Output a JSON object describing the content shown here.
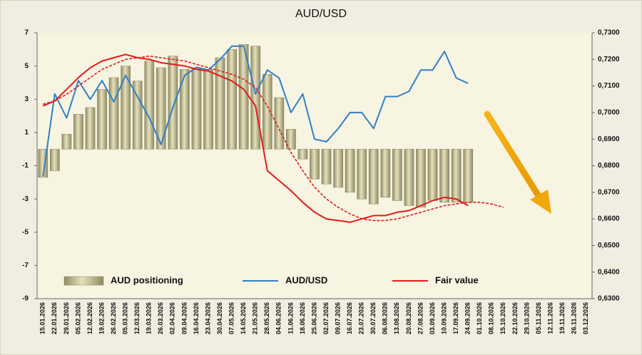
{
  "chart_data": {
    "type": "bar",
    "title": "AUD/USD",
    "categories": [
      "15.01.2026",
      "22.01.2026",
      "29.01.2026",
      "05.02.2026",
      "12.02.2026",
      "19.02.2026",
      "26.02.2026",
      "05.03.2026",
      "12.03.2026",
      "19.03.2026",
      "26.03.2026",
      "02.04.2026",
      "09.04.2026",
      "16.04.2026",
      "23.04.2026",
      "30.04.2026",
      "07.05.2026",
      "14.05.2026",
      "21.05.2026",
      "28.05.2026",
      "04.06.2026",
      "11.06.2026",
      "18.06.2026",
      "25.06.2026",
      "02.07.2026",
      "09.07.2026",
      "16.07.2026",
      "23.07.2026",
      "30.07.2026",
      "06.08.2026",
      "13.08.2026",
      "20.08.2026",
      "27.08.2026",
      "03.09.2026",
      "10.09.2026",
      "17.09.2026",
      "24.09.2026",
      "01.10.2026",
      "08.10.2026",
      "15.10.2026",
      "22.10.2026",
      "29.10.2026",
      "05.11.2026",
      "12.11.2026",
      "19.11.2026",
      "26.11.2026",
      "03.12.2026"
    ],
    "series": [
      {
        "name": "AUD positioning",
        "type": "bar",
        "color": "#c9c39b",
        "values": [
          -1.7,
          -1.3,
          0.9,
          2.1,
          2.5,
          3.6,
          4.3,
          5.0,
          4.1,
          5.3,
          4.9,
          5.6,
          4.8,
          4.9,
          4.8,
          5.5,
          6.0,
          6.3,
          6.2,
          4.5,
          3.1,
          1.2,
          -0.6,
          -1.8,
          -2.1,
          -2.3,
          -2.6,
          -3.0,
          -3.3,
          -2.9,
          -3.1,
          -3.4,
          -3.5,
          -3.1,
          -3.2,
          -3.2,
          -3.2,
          null,
          null,
          null,
          null,
          null,
          null,
          null,
          null,
          null,
          null
        ]
      },
      {
        "name": "AUD/USD",
        "type": "line",
        "axis": "y2",
        "color": "#2f80c8",
        "values": [
          0.676,
          0.707,
          0.698,
          0.712,
          0.705,
          0.712,
          0.704,
          0.714,
          0.706,
          0.698,
          0.688,
          0.702,
          0.714,
          0.717,
          0.716,
          0.72,
          0.725,
          0.725,
          0.707,
          0.716,
          0.713,
          0.7,
          0.707,
          0.69,
          0.689,
          0.694,
          0.7,
          0.7,
          0.694,
          0.706,
          0.706,
          0.708,
          0.716,
          0.716,
          0.723,
          0.713,
          0.711,
          null,
          null,
          null,
          null,
          null,
          null,
          null,
          null,
          null,
          null
        ]
      },
      {
        "name": "Fair value",
        "type": "line",
        "color": "#e31b1b",
        "values": [
          2.6,
          2.9,
          3.6,
          4.3,
          4.9,
          5.3,
          5.5,
          5.7,
          5.5,
          5.4,
          5.2,
          5.1,
          5.0,
          4.8,
          4.7,
          4.4,
          4.1,
          3.6,
          2.6,
          -1.3,
          -1.9,
          -2.5,
          -3.2,
          -3.8,
          -4.2,
          -4.3,
          -4.4,
          -4.2,
          -4.0,
          -4.0,
          -3.8,
          -3.7,
          -3.4,
          -3.1,
          -2.9,
          -3.0,
          -3.4,
          null,
          null,
          null,
          null,
          null,
          null,
          null,
          null,
          null,
          null
        ]
      },
      {
        "type": "line",
        "color": "#e31b1b",
        "dash": true,
        "values": [
          2.7,
          2.9,
          3.3,
          3.8,
          4.3,
          4.8,
          5.1,
          5.4,
          5.5,
          5.6,
          5.5,
          5.4,
          5.3,
          5.1,
          4.9,
          4.7,
          4.5,
          4.2,
          3.7,
          2.6,
          1.2,
          -0.2,
          -1.3,
          -2.3,
          -3.0,
          -3.5,
          -3.9,
          -4.2,
          -4.3,
          -4.3,
          -4.2,
          -4.0,
          -3.8,
          -3.6,
          -3.4,
          -3.3,
          -3.2,
          -3.2,
          -3.3,
          -3.5,
          null,
          null,
          null,
          null,
          null,
          null,
          null
        ]
      }
    ],
    "ylim": [
      -9,
      7
    ],
    "yticks": [
      7,
      5,
      3,
      1,
      -1,
      -3,
      -5,
      -7,
      -9
    ],
    "y2lim": [
      0.63,
      0.73
    ],
    "y2ticks": [
      {
        "value": 0.73,
        "label": "0,7300"
      },
      {
        "value": 0.72,
        "label": "0,7200"
      },
      {
        "value": 0.71,
        "label": "0,7100"
      },
      {
        "value": 0.7,
        "label": "0,7000"
      },
      {
        "value": 0.69,
        "label": "0,6900"
      },
      {
        "value": 0.68,
        "label": "0,6800"
      },
      {
        "value": 0.67,
        "label": "0,6700"
      },
      {
        "value": 0.66,
        "label": "0,6600"
      },
      {
        "value": 0.65,
        "label": "0,6500"
      },
      {
        "value": 0.64,
        "label": "0,6400"
      },
      {
        "value": 0.63,
        "label": "0,6300"
      }
    ],
    "grid": false
  }
}
